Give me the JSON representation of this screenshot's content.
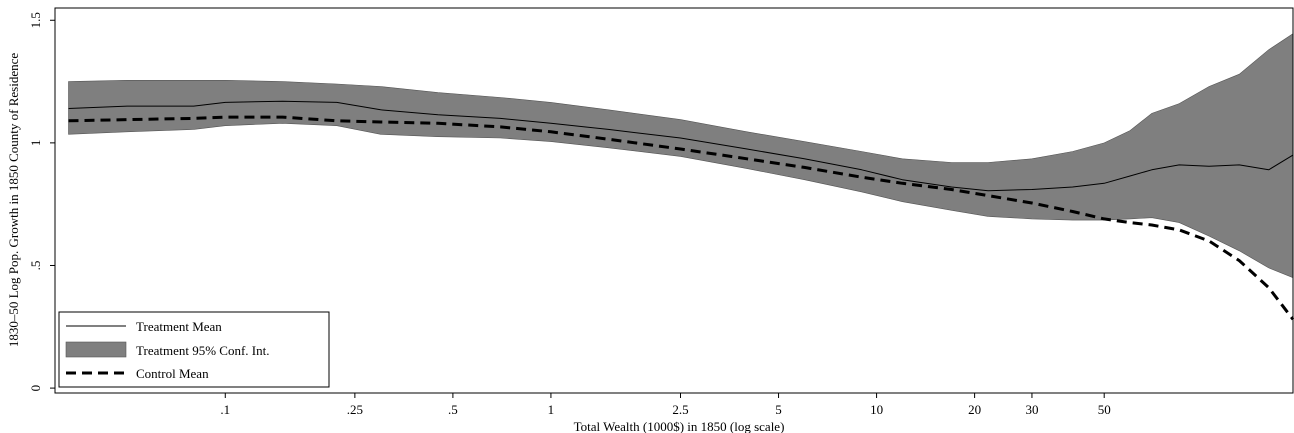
{
  "chart_data": {
    "type": "line",
    "xscale": "log",
    "xlabel": "Total Wealth (1000$) in 1850 (log scale)",
    "ylabel": "1830–50 Log Pop. Growth in 1850 County of Residence",
    "xlim": [
      0.03,
      190
    ],
    "ylim": [
      -0.02,
      1.55
    ],
    "x_ticks": [
      {
        "value": 0.1,
        "label": ".1"
      },
      {
        "value": 0.25,
        "label": ".25"
      },
      {
        "value": 0.5,
        "label": ".5"
      },
      {
        "value": 1,
        "label": "1"
      },
      {
        "value": 2.5,
        "label": "2.5"
      },
      {
        "value": 5,
        "label": "5"
      },
      {
        "value": 10,
        "label": "10"
      },
      {
        "value": 20,
        "label": "20"
      },
      {
        "value": 30,
        "label": "30"
      },
      {
        "value": 50,
        "label": "50"
      }
    ],
    "y_ticks": [
      {
        "value": 0,
        "label": "0"
      },
      {
        "value": 0.5,
        "label": ".5"
      },
      {
        "value": 1,
        "label": "1"
      },
      {
        "value": 1.5,
        "label": "1.5"
      }
    ],
    "grid": false,
    "legend_position": "bottom-left",
    "series": [
      {
        "name": "Treatment Mean",
        "style": "solid-thin",
        "color": "#000000",
        "x": [
          0.033,
          0.05,
          0.08,
          0.1,
          0.15,
          0.22,
          0.3,
          0.45,
          0.7,
          1.0,
          1.5,
          2.5,
          4.0,
          6.0,
          9.0,
          12.0,
          17.0,
          22.0,
          30.0,
          40.0,
          50.0,
          60.0,
          70.0,
          85.0,
          105.0,
          130.0,
          160.0,
          190.0
        ],
        "y": [
          1.14,
          1.15,
          1.15,
          1.165,
          1.17,
          1.165,
          1.135,
          1.115,
          1.1,
          1.08,
          1.055,
          1.02,
          0.975,
          0.935,
          0.89,
          0.85,
          0.82,
          0.805,
          0.81,
          0.82,
          0.835,
          0.865,
          0.89,
          0.91,
          0.905,
          0.91,
          0.89,
          0.95
        ]
      },
      {
        "name": "Treatment 95% Conf. Int.",
        "style": "band",
        "color": "#7f7f7f",
        "x": [
          0.033,
          0.05,
          0.08,
          0.1,
          0.15,
          0.22,
          0.3,
          0.45,
          0.7,
          1.0,
          1.5,
          2.5,
          4.0,
          6.0,
          9.0,
          12.0,
          17.0,
          22.0,
          30.0,
          40.0,
          50.0,
          60.0,
          70.0,
          85.0,
          105.0,
          130.0,
          160.0,
          190.0
        ],
        "lower": [
          1.035,
          1.045,
          1.055,
          1.07,
          1.08,
          1.07,
          1.035,
          1.025,
          1.02,
          1.005,
          0.98,
          0.945,
          0.895,
          0.85,
          0.8,
          0.76,
          0.725,
          0.7,
          0.69,
          0.685,
          0.685,
          0.69,
          0.695,
          0.675,
          0.62,
          0.56,
          0.49,
          0.45
        ],
        "upper": [
          1.25,
          1.255,
          1.255,
          1.255,
          1.25,
          1.24,
          1.23,
          1.205,
          1.185,
          1.165,
          1.135,
          1.095,
          1.045,
          1.005,
          0.965,
          0.935,
          0.92,
          0.92,
          0.935,
          0.965,
          1.0,
          1.05,
          1.12,
          1.16,
          1.23,
          1.28,
          1.38,
          1.445
        ]
      },
      {
        "name": "Control Mean",
        "style": "dashed-thick",
        "color": "#000000",
        "x": [
          0.033,
          0.05,
          0.08,
          0.1,
          0.15,
          0.22,
          0.3,
          0.45,
          0.7,
          1.0,
          1.5,
          2.5,
          4.0,
          6.0,
          9.0,
          12.0,
          17.0,
          22.0,
          30.0,
          40.0,
          50.0,
          60.0,
          70.0,
          85.0,
          105.0,
          130.0,
          160.0,
          190.0
        ],
        "y": [
          1.09,
          1.095,
          1.1,
          1.105,
          1.105,
          1.09,
          1.085,
          1.08,
          1.065,
          1.045,
          1.015,
          0.975,
          0.935,
          0.9,
          0.86,
          0.835,
          0.81,
          0.785,
          0.755,
          0.72,
          0.69,
          0.675,
          0.665,
          0.645,
          0.6,
          0.52,
          0.41,
          0.28
        ]
      }
    ]
  },
  "legend": {
    "items": [
      {
        "label": "Treatment Mean"
      },
      {
        "label": "Treatment 95% Conf. Int."
      },
      {
        "label": "Control Mean"
      }
    ]
  }
}
